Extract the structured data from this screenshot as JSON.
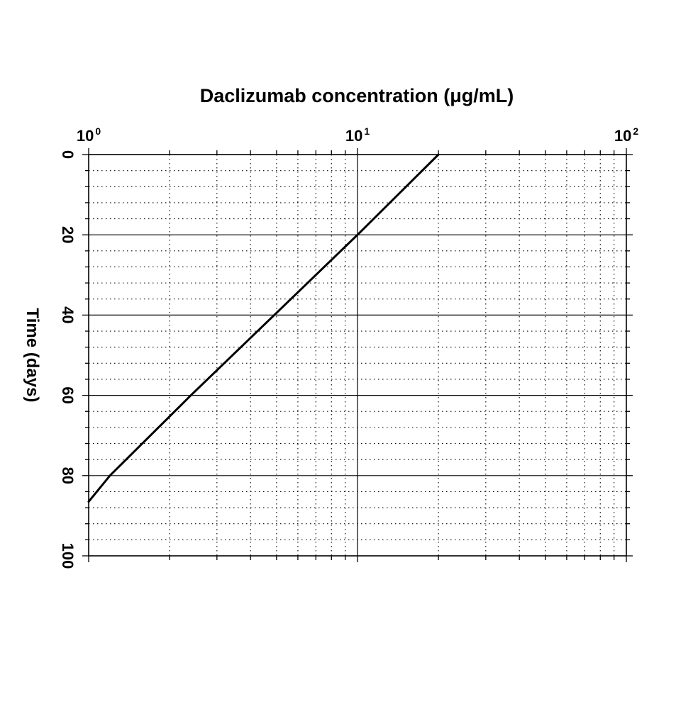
{
  "chart_data": {
    "type": "line",
    "title": "",
    "xlabel": "Daclizumab concentration (μg/mL)",
    "ylabel": "Time (days)",
    "x_scale": "log",
    "xlim": [
      1,
      100
    ],
    "ylim": [
      0,
      100
    ],
    "y_inverted": true,
    "x_axis_position": "top",
    "grid": true,
    "x_ticks": [
      {
        "value": 1,
        "base": "10",
        "exp": "0"
      },
      {
        "value": 10,
        "base": "10",
        "exp": "1"
      },
      {
        "value": 100,
        "base": "10",
        "exp": "2"
      }
    ],
    "y_ticks": [
      "0",
      "20",
      "40",
      "60",
      "80",
      "100"
    ],
    "series": [
      {
        "x": [
          20,
          10,
          4.9,
          2.4,
          1.2,
          1.0
        ],
        "y": [
          0,
          20,
          40,
          60,
          80,
          86.5
        ]
      }
    ],
    "colors": {
      "line": "#000000",
      "axes": "#000000",
      "grid_major": "#000000",
      "grid_minor": "#000000"
    }
  }
}
